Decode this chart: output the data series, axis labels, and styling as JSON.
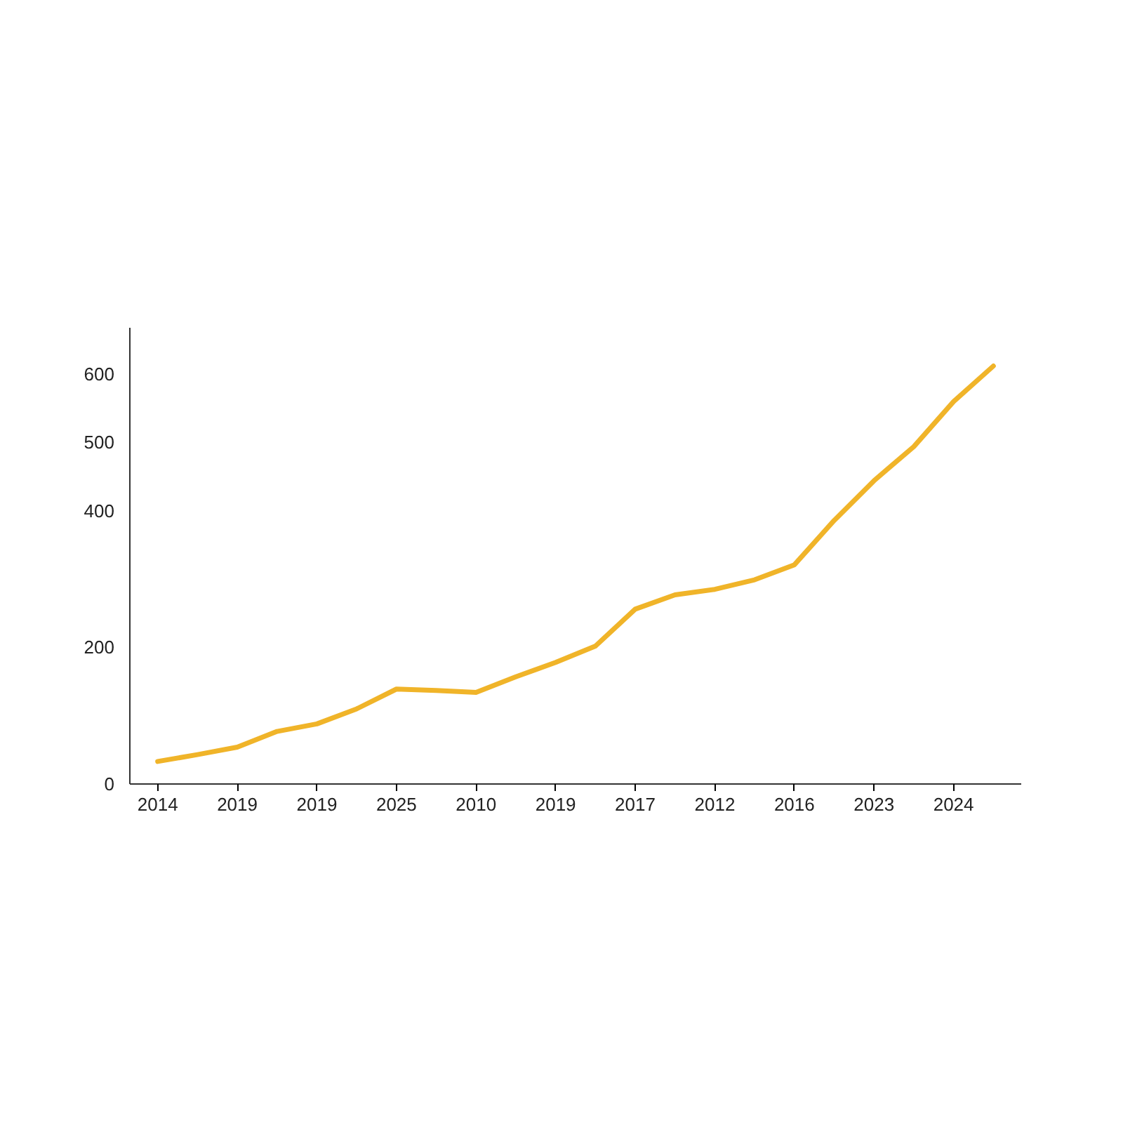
{
  "chart_data": {
    "type": "line",
    "categories": [
      "2014",
      null,
      "2019",
      null,
      "2019",
      null,
      "2025",
      null,
      "2010",
      null,
      "2019",
      null,
      "2017",
      null,
      "2012",
      null,
      "2016",
      null,
      "2023",
      null,
      "2024",
      null
    ],
    "series": [
      {
        "color": "#f0b429",
        "values": [
          33,
          43,
          54,
          77,
          88,
          110,
          139,
          137,
          134,
          157,
          178,
          202,
          256,
          277,
          285,
          299,
          321,
          386,
          444,
          494,
          560,
          612
        ]
      }
    ],
    "ylim": [
      0,
      668
    ],
    "yticks": [
      0,
      200,
      400,
      500,
      600
    ],
    "grid": false,
    "marker": "none",
    "line_style": "solid"
  }
}
